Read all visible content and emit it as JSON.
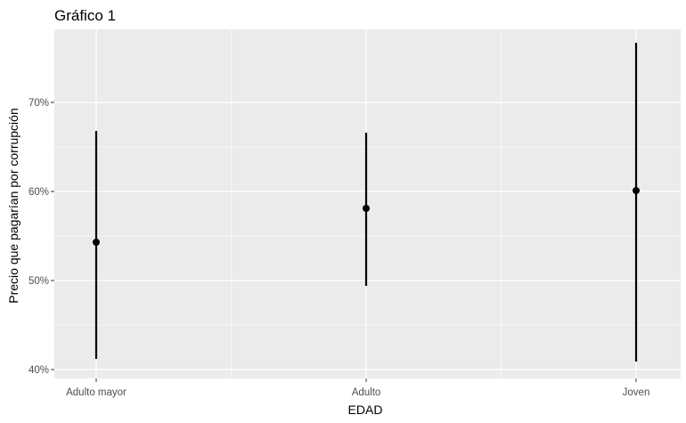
{
  "chart_data": {
    "type": "errorbar",
    "title": "Gráfico 1",
    "xlabel": "EDAD",
    "ylabel": "Precio que pagarían por corrupción",
    "categories": [
      "Adulto mayor",
      "Adulto",
      "Joven"
    ],
    "points": [
      {
        "category": "Adulto mayor",
        "estimate": 54.3,
        "lower": 41.2,
        "upper": 66.8
      },
      {
        "category": "Adulto",
        "estimate": 58.1,
        "lower": 49.4,
        "upper": 66.6
      },
      {
        "category": "Joven",
        "estimate": 60.1,
        "lower": 40.9,
        "upper": 76.7
      }
    ],
    "y_ticks": [
      40,
      50,
      60,
      70
    ],
    "y_tick_labels": [
      "40%",
      "50%",
      "60%",
      "70%"
    ],
    "ylim": [
      39,
      78.2
    ],
    "grid": true,
    "panel_background": "#ebebeb",
    "grid_color": "#ffffff",
    "mark_color": "#000000"
  }
}
